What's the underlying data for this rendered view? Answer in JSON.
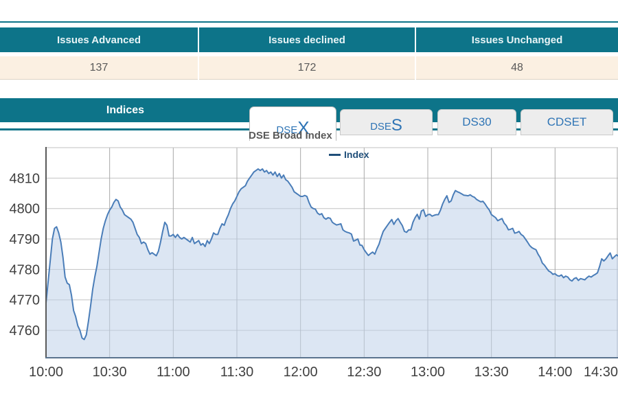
{
  "summary_table": {
    "headers": [
      "Issues Advanced",
      "Issues declined",
      "Issues Unchanged"
    ],
    "values": [
      "137",
      "172",
      "48"
    ]
  },
  "indices": {
    "title": "Indices",
    "tabs": [
      {
        "text": "DSE",
        "big": "X",
        "active": true
      },
      {
        "text": "DSE",
        "big": "S",
        "active": false
      },
      {
        "text": "DS30",
        "big": "",
        "active": false
      },
      {
        "text": "CDSET",
        "big": "",
        "active": false
      }
    ],
    "subtitle": "DSE Broad Index"
  },
  "legend": {
    "label": "Index",
    "color": "#1f4e79"
  },
  "colors": {
    "teal": "#0d7489",
    "beige": "#fbf0e2",
    "tab_blue": "#2e74b5",
    "line": "#4a7db8",
    "fill": "#c0d2e9",
    "grid_v": "#a8a8a8",
    "grid_h": "#c2c2c2",
    "axis": "#595959",
    "baseline": "#5a738e",
    "tick_text": "#404040"
  },
  "chart_data": {
    "type": "area",
    "title": "DSE Broad Index",
    "legend_entries": [
      "Index"
    ],
    "legend_position": "top-center",
    "grid": true,
    "xlabel": "",
    "ylabel": "",
    "x_ticks": [
      "10:00",
      "10:30",
      "11:00",
      "11:30",
      "12:00",
      "12:30",
      "13:00",
      "13:30",
      "14:00",
      "14:30"
    ],
    "x_tick_minutes": [
      0,
      30,
      60,
      90,
      120,
      150,
      180,
      210,
      240,
      270
    ],
    "y_ticks": [
      4760,
      4770,
      4780,
      4790,
      4800,
      4810
    ],
    "ylim": [
      4751,
      4820
    ],
    "xlim_minutes": [
      0,
      270
    ],
    "series": [
      {
        "name": "Index",
        "points": [
          [
            0,
            4769
          ],
          [
            1,
            4776
          ],
          [
            2,
            4783
          ],
          [
            3,
            4790
          ],
          [
            4,
            4793.5
          ],
          [
            5,
            4794
          ],
          [
            6,
            4792
          ],
          [
            7,
            4789
          ],
          [
            8,
            4784
          ],
          [
            9,
            4777.5
          ],
          [
            10,
            4775.5
          ],
          [
            11,
            4775
          ],
          [
            12,
            4771.5
          ],
          [
            13,
            4766.5
          ],
          [
            14,
            4764.5
          ],
          [
            15,
            4761.5
          ],
          [
            16,
            4760
          ],
          [
            17,
            4757.5
          ],
          [
            18,
            4757
          ],
          [
            19,
            4758.5
          ],
          [
            20,
            4763
          ],
          [
            21,
            4768
          ],
          [
            22,
            4773.5
          ],
          [
            23,
            4777.5
          ],
          [
            24,
            4781
          ],
          [
            25,
            4785.5
          ],
          [
            26,
            4790
          ],
          [
            27,
            4793.5
          ],
          [
            28,
            4796
          ],
          [
            29,
            4798
          ],
          [
            30,
            4799.5
          ],
          [
            31,
            4800.5
          ],
          [
            32,
            4802
          ],
          [
            33,
            4803
          ],
          [
            34,
            4802.5
          ],
          [
            35,
            4800.5
          ],
          [
            36,
            4799.5
          ],
          [
            37,
            4798
          ],
          [
            38,
            4797.5
          ],
          [
            39,
            4797
          ],
          [
            40,
            4796.5
          ],
          [
            41,
            4795.5
          ],
          [
            42,
            4793.5
          ],
          [
            43,
            4791.5
          ],
          [
            44,
            4790.5
          ],
          [
            45,
            4788.5
          ],
          [
            46,
            4789
          ],
          [
            47,
            4788.5
          ],
          [
            48,
            4786.5
          ],
          [
            49,
            4785
          ],
          [
            50,
            4785.5
          ],
          [
            51,
            4785
          ],
          [
            52,
            4784.5
          ],
          [
            53,
            4786
          ],
          [
            54,
            4789
          ],
          [
            55,
            4792.5
          ],
          [
            56,
            4795.5
          ],
          [
            57,
            4794.5
          ],
          [
            58,
            4791
          ],
          [
            59,
            4791
          ],
          [
            60,
            4791.5
          ],
          [
            61,
            4790.5
          ],
          [
            62,
            4791.5
          ],
          [
            63,
            4790.5
          ],
          [
            64,
            4790
          ],
          [
            65,
            4790.5
          ],
          [
            66,
            4790
          ],
          [
            67,
            4789.5
          ],
          [
            68,
            4789
          ],
          [
            69,
            4790.5
          ],
          [
            70,
            4788.5
          ],
          [
            71,
            4789
          ],
          [
            72,
            4789.5
          ],
          [
            73,
            4788
          ],
          [
            74,
            4788.5
          ],
          [
            75,
            4787.5
          ],
          [
            76,
            4789.5
          ],
          [
            77,
            4788.5
          ],
          [
            78,
            4790
          ],
          [
            79,
            4792
          ],
          [
            80,
            4791.5
          ],
          [
            81,
            4791.5
          ],
          [
            82,
            4793.5
          ],
          [
            83,
            4795
          ],
          [
            84,
            4794.5
          ],
          [
            85,
            4796.5
          ],
          [
            86,
            4798
          ],
          [
            87,
            4800
          ],
          [
            88,
            4801.5
          ],
          [
            89,
            4802.5
          ],
          [
            90,
            4804
          ],
          [
            91,
            4805.5
          ],
          [
            92,
            4806.5
          ],
          [
            93,
            4807
          ],
          [
            94,
            4807.5
          ],
          [
            95,
            4809
          ],
          [
            96,
            4810
          ],
          [
            97,
            4811
          ],
          [
            98,
            4812
          ],
          [
            99,
            4812.5
          ],
          [
            100,
            4813
          ],
          [
            101,
            4812.5
          ],
          [
            102,
            4813
          ],
          [
            103,
            4812
          ],
          [
            104,
            4812.5
          ],
          [
            105,
            4811.5
          ],
          [
            106,
            4812
          ],
          [
            107,
            4811
          ],
          [
            108,
            4812
          ],
          [
            109,
            4810.5
          ],
          [
            110,
            4811.5
          ],
          [
            111,
            4810
          ],
          [
            112,
            4811
          ],
          [
            113,
            4809.5
          ],
          [
            114,
            4809
          ],
          [
            115,
            4808
          ],
          [
            116,
            4807
          ],
          [
            117,
            4805.5
          ],
          [
            118,
            4805
          ],
          [
            119,
            4804.5
          ],
          [
            120,
            4804
          ],
          [
            121,
            4804
          ],
          [
            122,
            4804.3
          ],
          [
            123,
            4804
          ],
          [
            124,
            4802
          ],
          [
            125,
            4800.5
          ],
          [
            126,
            4800
          ],
          [
            127,
            4799.8
          ],
          [
            128,
            4798.5
          ],
          [
            129,
            4798
          ],
          [
            130,
            4798.3
          ],
          [
            131,
            4797
          ],
          [
            132,
            4796.5
          ],
          [
            133,
            4797
          ],
          [
            134,
            4796.8
          ],
          [
            135,
            4795.5
          ],
          [
            136,
            4795
          ],
          [
            137,
            4794.6
          ],
          [
            138,
            4794.8
          ],
          [
            139,
            4795
          ],
          [
            140,
            4793
          ],
          [
            141,
            4792.5
          ],
          [
            142,
            4792.2
          ],
          [
            143,
            4792
          ],
          [
            144,
            4791.6
          ],
          [
            145,
            4789.3
          ],
          [
            146,
            4789.6
          ],
          [
            147,
            4790
          ],
          [
            148,
            4788
          ],
          [
            149,
            4787.9
          ],
          [
            150,
            4786.5
          ],
          [
            151,
            4785.5
          ],
          [
            152,
            4784.6
          ],
          [
            153,
            4785.2
          ],
          [
            154,
            4785.7
          ],
          [
            155,
            4785
          ],
          [
            156,
            4786.8
          ],
          [
            157,
            4788.3
          ],
          [
            158,
            4790.5
          ],
          [
            159,
            4792.5
          ],
          [
            160,
            4793.5
          ],
          [
            161,
            4794.5
          ],
          [
            162,
            4795.5
          ],
          [
            163,
            4796.4
          ],
          [
            164,
            4794.8
          ],
          [
            165,
            4796
          ],
          [
            166,
            4796.7
          ],
          [
            167,
            4795.5
          ],
          [
            168,
            4794.4
          ],
          [
            169,
            4792.5
          ],
          [
            170,
            4792.2
          ],
          [
            171,
            4793
          ],
          [
            172,
            4793
          ],
          [
            173,
            4795.5
          ],
          [
            174,
            4797
          ],
          [
            175,
            4798.1
          ],
          [
            176,
            4796.5
          ],
          [
            177,
            4799.2
          ],
          [
            178,
            4799.6
          ],
          [
            179,
            4797.4
          ],
          [
            180,
            4798
          ],
          [
            181,
            4798.1
          ],
          [
            182,
            4797.5
          ],
          [
            183,
            4797.8
          ],
          [
            184,
            4798
          ],
          [
            185,
            4798
          ],
          [
            186,
            4799.5
          ],
          [
            187,
            4801.5
          ],
          [
            188,
            4803
          ],
          [
            189,
            4804.2
          ],
          [
            190,
            4802
          ],
          [
            191,
            4802.5
          ],
          [
            192,
            4804.5
          ],
          [
            193,
            4805.9
          ],
          [
            194,
            4805.5
          ],
          [
            195,
            4805.2
          ],
          [
            196,
            4804.8
          ],
          [
            197,
            4804.4
          ],
          [
            198,
            4804.3
          ],
          [
            199,
            4804.2
          ],
          [
            200,
            4804.5
          ],
          [
            201,
            4804
          ],
          [
            202,
            4803.7
          ],
          [
            203,
            4803
          ],
          [
            204,
            4802.6
          ],
          [
            205,
            4802.2
          ],
          [
            206,
            4802.4
          ],
          [
            207,
            4801.5
          ],
          [
            208,
            4800.4
          ],
          [
            209,
            4799.5
          ],
          [
            210,
            4798
          ],
          [
            211,
            4797.5
          ],
          [
            212,
            4797
          ],
          [
            213,
            4796
          ],
          [
            214,
            4796.4
          ],
          [
            215,
            4796.7
          ],
          [
            216,
            4795.2
          ],
          [
            217,
            4794.4
          ],
          [
            218,
            4793
          ],
          [
            219,
            4793.2
          ],
          [
            220,
            4793.5
          ],
          [
            221,
            4791.9
          ],
          [
            222,
            4792.1
          ],
          [
            223,
            4792.5
          ],
          [
            224,
            4791.5
          ],
          [
            225,
            4791
          ],
          [
            226,
            4790
          ],
          [
            227,
            4789
          ],
          [
            228,
            4787.9
          ],
          [
            229,
            4787.2
          ],
          [
            230,
            4786.8
          ],
          [
            231,
            4786.5
          ],
          [
            232,
            4785
          ],
          [
            233,
            4783.9
          ],
          [
            234,
            4782.1
          ],
          [
            235,
            4781.4
          ],
          [
            236,
            4780.4
          ],
          [
            237,
            4779.5
          ],
          [
            238,
            4779.1
          ],
          [
            239,
            4778.4
          ],
          [
            240,
            4778.6
          ],
          [
            241,
            4778
          ],
          [
            242,
            4777.8
          ],
          [
            243,
            4778.2
          ],
          [
            244,
            4777.3
          ],
          [
            245,
            4777.8
          ],
          [
            246,
            4777.5
          ],
          [
            247,
            4776.6
          ],
          [
            248,
            4776.2
          ],
          [
            249,
            4777
          ],
          [
            250,
            4777.3
          ],
          [
            251,
            4776.4
          ],
          [
            252,
            4777
          ],
          [
            253,
            4776.8
          ],
          [
            254,
            4776.6
          ],
          [
            255,
            4777.3
          ],
          [
            256,
            4777.8
          ],
          [
            257,
            4777.5
          ],
          [
            258,
            4778
          ],
          [
            259,
            4778.4
          ],
          [
            260,
            4778.9
          ],
          [
            261,
            4781
          ],
          [
            262,
            4783.5
          ],
          [
            263,
            4782.8
          ],
          [
            264,
            4783.5
          ],
          [
            265,
            4784.5
          ],
          [
            266,
            4785.4
          ],
          [
            267,
            4783.5
          ],
          [
            268,
            4784.2
          ],
          [
            269,
            4784.8
          ],
          [
            270,
            4784.3
          ]
        ]
      }
    ]
  }
}
